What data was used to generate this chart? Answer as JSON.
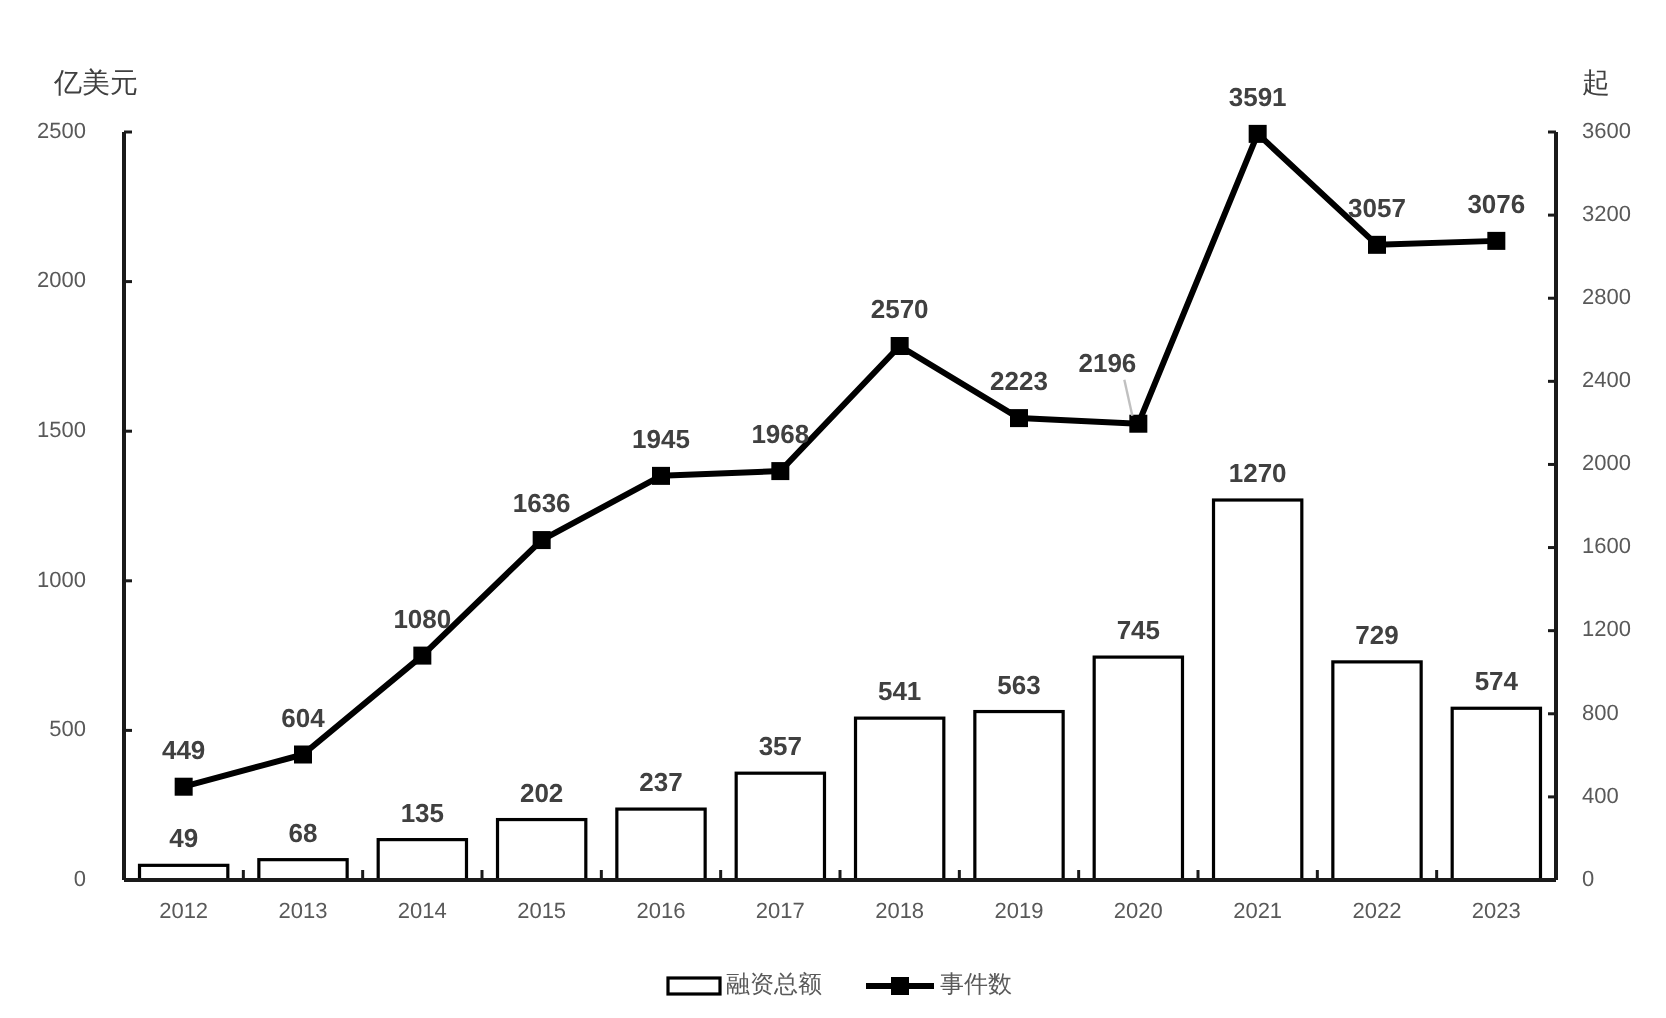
{
  "chart_data": {
    "type": "bar",
    "ylabel": "亿美元",
    "y2label": "起",
    "categories": [
      "2012",
      "2013",
      "2014",
      "2015",
      "2016",
      "2017",
      "2018",
      "2019",
      "2020",
      "2021",
      "2022",
      "2023"
    ],
    "series": [
      {
        "name": "融资总额",
        "color": "#ffffff",
        "values": [
          49,
          68,
          135,
          202,
          237,
          357,
          541,
          563,
          745,
          1270,
          729,
          574
        ]
      },
      {
        "name": "事件数",
        "type": "line",
        "axis": "y2",
        "color": "#000000",
        "values": [
          449,
          604,
          1080,
          1636,
          1945,
          1968,
          2570,
          2223,
          2196,
          3591,
          3057,
          3076
        ]
      }
    ],
    "ylim": [
      0,
      2500
    ],
    "yticks": [
      0,
      500,
      1000,
      1500,
      2000,
      2500
    ],
    "y2lim": [
      0,
      3600
    ],
    "y2ticks": [
      0,
      400,
      800,
      1200,
      1600,
      2000,
      2400,
      2800,
      3200,
      3600
    ],
    "marker": "square",
    "data_labels": true,
    "legend": "bottom"
  }
}
